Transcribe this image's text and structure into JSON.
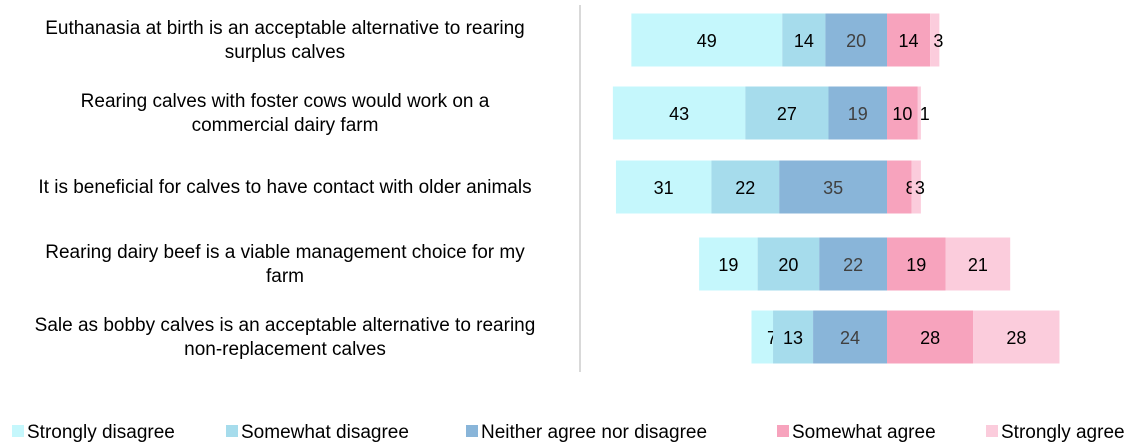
{
  "chart_data": {
    "type": "bar",
    "orientation": "horizontal",
    "stacked": true,
    "diverging": true,
    "title": "",
    "xlabel": "",
    "ylabel": "",
    "grid": false,
    "legend_position": "bottom",
    "categories": [
      "Euthanasia at birth is an acceptable alternative to rearing surplus calves",
      "Rearing calves with foster cows would work on a commercial dairy farm",
      "It is beneficial for calves to have contact with older animals",
      "Rearing dairy beef is a viable management choice for my farm",
      "Sale as bobby calves is an acceptable alternative to rearing non-replacement calves"
    ],
    "category_lines": [
      [
        "Euthanasia at birth is an acceptable alternative to rearing",
        "surplus calves"
      ],
      [
        "Rearing calves with foster cows would work on a",
        "commercial dairy farm"
      ],
      [
        "It is beneficial for calves to have contact with older animals"
      ],
      [
        "Rearing dairy beef is a viable management choice for my",
        "farm"
      ],
      [
        "Sale as bobby calves is an acceptable alternative to rearing",
        "non-replacement calves"
      ]
    ],
    "series": [
      {
        "name": "Strongly disagree",
        "color": "#C5F7FC",
        "label_color": "#000000",
        "values": [
          49,
          43,
          31,
          19,
          7
        ]
      },
      {
        "name": "Somewhat disagree",
        "color": "#A6DCEC",
        "label_color": "#000000",
        "values": [
          14,
          27,
          22,
          20,
          13
        ]
      },
      {
        "name": "Neither agree nor disagree",
        "color": "#89B5D9",
        "label_color": "#404040",
        "values": [
          20,
          19,
          35,
          22,
          24
        ]
      },
      {
        "name": "Somewhat agree",
        "color": "#F7A3BD",
        "label_color": "#000000",
        "values": [
          14,
          10,
          8,
          19,
          28
        ]
      },
      {
        "name": "Strongly agree",
        "color": "#FBCCDC",
        "label_color": "#000000",
        "values": [
          3,
          1,
          3,
          21,
          28
        ]
      }
    ]
  }
}
